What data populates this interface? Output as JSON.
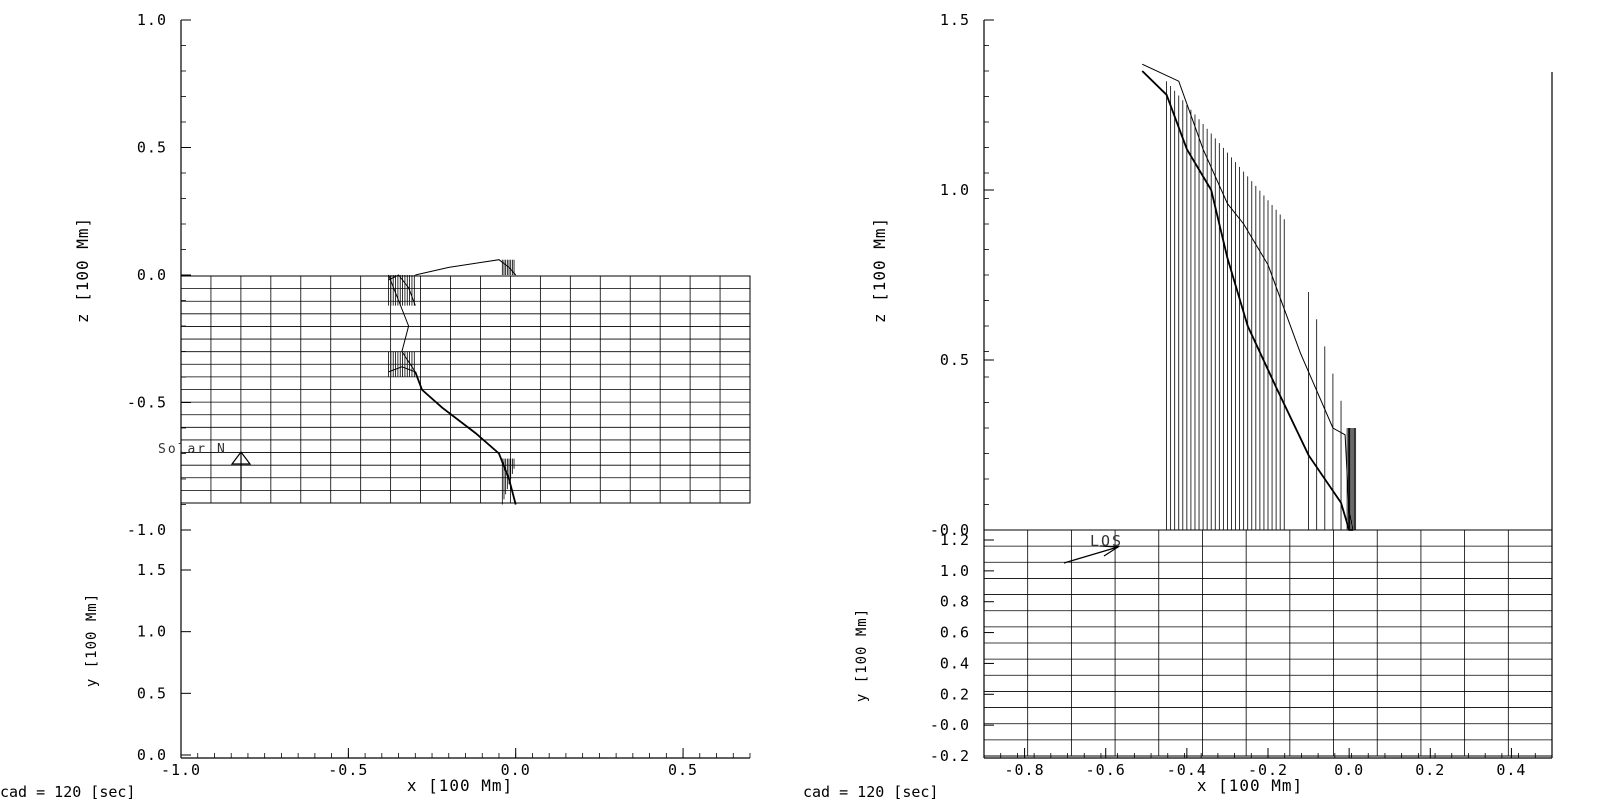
{
  "footer": {
    "left_cad": "cad =  120 [sec]",
    "right_cad": "cad =  120 [sec]"
  },
  "chart_data": [
    {
      "type": "line",
      "panel": "left",
      "xlabel": "x [100 Mm]",
      "zlabel": "z [100 Mm]",
      "ylabel": "y [100 Mm]",
      "z_range": [
        -1.0,
        1.0
      ],
      "z_ticks": [
        "1.0",
        "0.5",
        "0.0",
        "-0.5",
        "-1.0"
      ],
      "y_range": [
        0.0,
        1.5
      ],
      "y_ticks": [
        "1.5",
        "1.0",
        "0.5",
        "0.0"
      ],
      "x_range": [
        -1.0,
        0.7
      ],
      "x_ticks": [
        "-1.0",
        "-0.5",
        "0.0",
        "0.5"
      ],
      "grid": true,
      "grid_extent_z": [
        -0.9,
        0.0
      ],
      "annotation": "Solar N",
      "series": [
        {
          "x": [
            0.0,
            -0.02,
            -0.05,
            -0.12,
            -0.22,
            -0.28,
            -0.3
          ],
          "z": [
            -0.9,
            -0.8,
            -0.7,
            -0.62,
            -0.52,
            -0.45,
            -0.38
          ]
        },
        {
          "x": [
            -0.3,
            -0.34,
            -0.38
          ],
          "z": [
            -0.38,
            -0.36,
            -0.38
          ]
        },
        {
          "x": [
            -0.3,
            -0.32,
            -0.35,
            -0.38
          ],
          "z": [
            -0.12,
            -0.05,
            0.0,
            -0.02
          ]
        },
        {
          "x": [
            -0.3,
            -0.2,
            -0.1,
            -0.05,
            -0.02,
            0.0
          ],
          "z": [
            0.0,
            0.03,
            0.05,
            0.06,
            0.03,
            0.0
          ]
        },
        {
          "x": [
            -0.38,
            -0.35,
            -0.32,
            -0.34,
            -0.3
          ],
          "z": [
            0.0,
            -0.1,
            -0.2,
            -0.3,
            -0.38
          ]
        }
      ]
    },
    {
      "type": "line",
      "panel": "right",
      "xlabel": "x [100 Mm]",
      "zlabel": "z [100 Mm]",
      "ylabel": "y [100 Mm]",
      "z_range": [
        0.0,
        1.5
      ],
      "z_ticks": [
        "1.5",
        "1.0",
        "0.5",
        "-0.0"
      ],
      "y_range": [
        -0.2,
        1.2
      ],
      "y_ticks": [
        "1.2",
        "1.0",
        "0.8",
        "0.6",
        "0.4",
        "0.2",
        "-0.0",
        "-0.2"
      ],
      "x_range": [
        -0.9,
        0.5
      ],
      "x_ticks": [
        "-0.8",
        "-0.6",
        "-0.4",
        "-0.2",
        "0.0",
        "0.2",
        "0.4"
      ],
      "grid": true,
      "annotation": "LOS",
      "series": [
        {
          "x": [
            -0.51,
            -0.45,
            -0.4,
            -0.34,
            -0.3,
            -0.25,
            -0.18,
            -0.1,
            -0.02,
            0.0,
            0.01
          ],
          "z": [
            1.35,
            1.28,
            1.12,
            1.0,
            0.8,
            0.6,
            0.42,
            0.22,
            0.08,
            0.0,
            0.0
          ]
        },
        {
          "x": [
            -0.51,
            -0.42,
            -0.36,
            -0.3,
            -0.26,
            -0.2,
            -0.12,
            -0.04,
            -0.01,
            0.0,
            0.01
          ],
          "z": [
            1.37,
            1.32,
            1.12,
            0.96,
            0.9,
            0.78,
            0.52,
            0.3,
            0.28,
            0.05,
            0.0
          ]
        }
      ]
    }
  ]
}
